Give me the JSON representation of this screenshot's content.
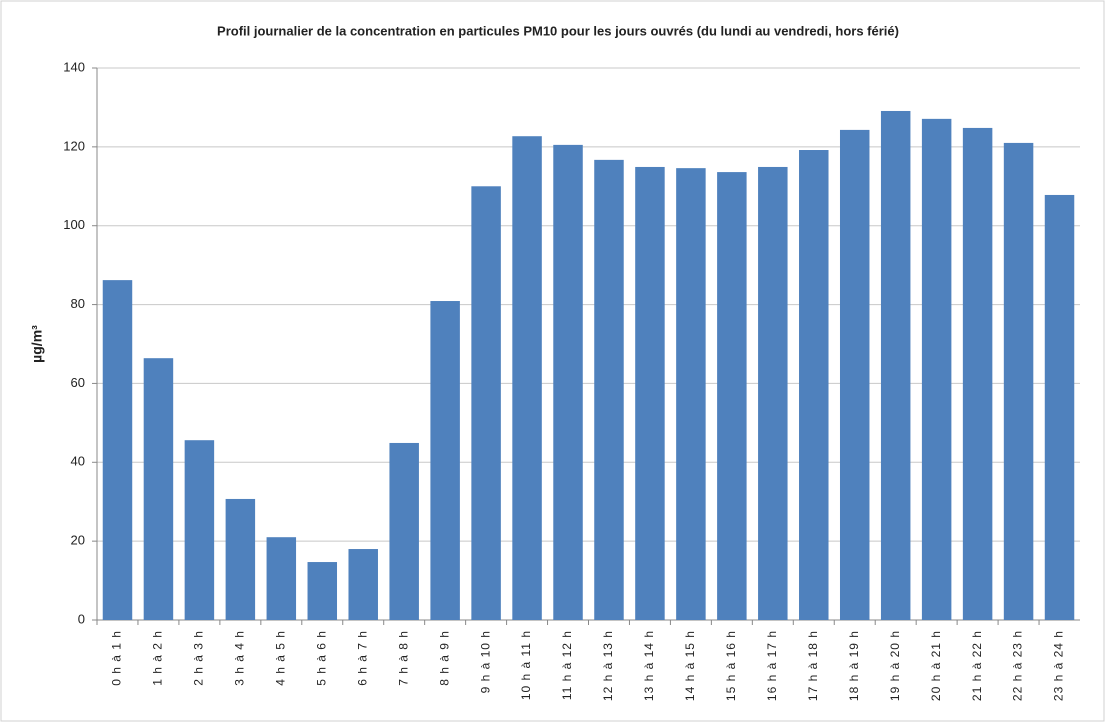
{
  "chart_data": {
    "type": "bar",
    "title": "Profil journalier de la  concentration en particules PM10 pour les jours ouvrés (du lundi au vendredi, hors férié)",
    "y_label": "µg/m³",
    "categories": [
      "0 h à 1 h",
      "1 h à 2 h",
      "2 h à 3 h",
      "3 h à 4 h",
      "4 h à 5 h",
      "5 h à 6 h",
      "6 h à 7 h",
      "7 h à 8 h",
      "8 h à 9 h",
      "9 h à 10 h",
      "10 h à 11 h",
      "11 h à 12 h",
      "12 h à 13 h",
      "13 h à 14 h",
      "14 h à 15 h",
      "15 h à 16 h",
      "16 h à 17 h",
      "17 h à 18 h",
      "18 h à 19 h",
      "19 h à 20 h",
      "20 h à 21 h",
      "21 h à 22 h",
      "22 h à 23 h",
      "23 h à 24 h"
    ],
    "values": [
      86.2,
      66.4,
      45.6,
      30.7,
      21,
      14.7,
      18,
      44.9,
      80.9,
      110,
      122.7,
      120.5,
      116.7,
      114.9,
      114.6,
      113.6,
      114.9,
      119.2,
      124.3,
      129.1,
      127.1,
      124.8,
      121,
      107.8
    ],
    "color": "#4f81bd",
    "ylim": [
      0,
      140
    ],
    "yticks": [
      0,
      20,
      40,
      60,
      80,
      100,
      120,
      140
    ],
    "grid": true
  }
}
